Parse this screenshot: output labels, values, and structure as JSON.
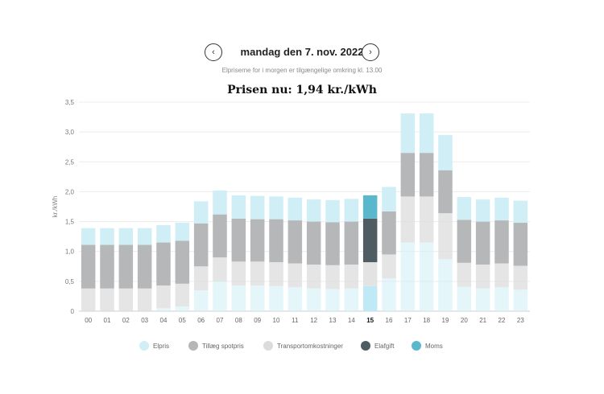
{
  "header": {
    "date_title": "mandag den 7. nov. 2022",
    "subtitle": "Elpriserne for i morgen er tilgængelige omkring kl. 13.00",
    "prev_icon": "chevron-left-icon",
    "next_icon": "chevron-right-icon",
    "prev_glyph": "‹",
    "next_glyph": "›"
  },
  "price_now": "Prisen nu: 1,94 kr./kWh",
  "colors": {
    "elpris": "#cfeef5",
    "tillaeg": "#b5b7b8",
    "transport": "#dcdcdc",
    "elafgift": "#4f5d63",
    "moms": "#5bb8cc",
    "active_elpris": "#bfe9f5",
    "active_tillaeg": "#a9abac",
    "active_transport": "#e3e3e3"
  },
  "chart_data": {
    "type": "bar",
    "stacked": true,
    "ylabel": "kr./kWh",
    "ylim": [
      0,
      3.5
    ],
    "yticks": [
      "0",
      "0,5",
      "1,0",
      "1,5",
      "2,0",
      "2,5",
      "3,0",
      "3,5"
    ],
    "ytick_values": [
      0,
      0.5,
      1.0,
      1.5,
      2.0,
      2.5,
      3.0,
      3.5
    ],
    "grid": true,
    "legend_position": "bottom",
    "highlighted_category": "15",
    "categories": [
      "00",
      "01",
      "02",
      "03",
      "04",
      "05",
      "06",
      "07",
      "08",
      "09",
      "10",
      "11",
      "12",
      "13",
      "14",
      "15",
      "16",
      "17",
      "18",
      "19",
      "20",
      "21",
      "22",
      "23"
    ],
    "series": [
      {
        "name": "Elpris",
        "values": [
          0.0,
          0.0,
          0.0,
          0.0,
          0.05,
          0.08,
          0.35,
          0.5,
          0.43,
          0.43,
          0.42,
          0.4,
          0.38,
          0.37,
          0.38,
          0.42,
          0.55,
          1.15,
          1.15,
          0.87,
          0.41,
          0.38,
          0.4,
          0.36
        ]
      },
      {
        "name": "Transportomkostninger",
        "values": [
          0.38,
          0.38,
          0.38,
          0.38,
          0.38,
          0.38,
          0.4,
          0.4,
          0.4,
          0.4,
          0.4,
          0.4,
          0.4,
          0.4,
          0.4,
          0.4,
          0.4,
          0.77,
          0.77,
          0.77,
          0.4,
          0.4,
          0.4,
          0.4
        ]
      },
      {
        "name": "Tillæg spotpris",
        "values": [
          0.73,
          0.73,
          0.73,
          0.73,
          0.72,
          0.72,
          0.72,
          0.72,
          0.72,
          0.71,
          0.72,
          0.72,
          0.72,
          0.72,
          0.72,
          0.73,
          0.72,
          0.73,
          0.73,
          0.72,
          0.72,
          0.72,
          0.72,
          0.72
        ]
      },
      {
        "name": "Moms",
        "values": [
          0.28,
          0.28,
          0.28,
          0.28,
          0.29,
          0.3,
          0.37,
          0.4,
          0.39,
          0.39,
          0.38,
          0.38,
          0.37,
          0.37,
          0.38,
          0.39,
          0.41,
          0.66,
          0.66,
          0.59,
          0.38,
          0.37,
          0.38,
          0.37
        ]
      }
    ],
    "legend": [
      {
        "name": "Elpris",
        "color_key": "elpris"
      },
      {
        "name": "Tillæg spotpris",
        "color_key": "tillaeg"
      },
      {
        "name": "Transportomkostninger",
        "color_key": "transport"
      },
      {
        "name": "Elafgift",
        "color_key": "elafgift"
      },
      {
        "name": "Moms",
        "color_key": "moms"
      }
    ]
  }
}
